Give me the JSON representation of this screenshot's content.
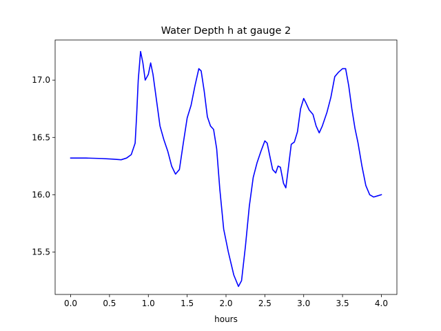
{
  "chart_data": {
    "type": "line",
    "title": "Water Depth h at gauge 2",
    "xlabel": "hours",
    "ylabel": "",
    "xlim": [
      -0.2,
      4.2
    ],
    "ylim": [
      15.13,
      17.35
    ],
    "xticks": [
      0.0,
      0.5,
      1.0,
      1.5,
      2.0,
      2.5,
      3.0,
      3.5,
      4.0
    ],
    "xtick_labels": [
      "0.0",
      "0.5",
      "1.0",
      "1.5",
      "2.0",
      "2.5",
      "3.0",
      "3.5",
      "4.0"
    ],
    "yticks": [
      15.5,
      16.0,
      16.5,
      17.0
    ],
    "ytick_labels": [
      "15.5",
      "16.0",
      "16.5",
      "17.0"
    ],
    "grid": false,
    "series": [
      {
        "color": "#0000ff",
        "x": [
          0.0,
          0.2,
          0.4,
          0.55,
          0.65,
          0.72,
          0.78,
          0.83,
          0.85,
          0.87,
          0.9,
          0.93,
          0.96,
          1.0,
          1.03,
          1.06,
          1.1,
          1.15,
          1.2,
          1.25,
          1.3,
          1.35,
          1.4,
          1.45,
          1.5,
          1.55,
          1.6,
          1.65,
          1.68,
          1.72,
          1.76,
          1.8,
          1.84,
          1.88,
          1.92,
          1.97,
          2.03,
          2.1,
          2.16,
          2.2,
          2.25,
          2.3,
          2.35,
          2.4,
          2.45,
          2.5,
          2.53,
          2.56,
          2.6,
          2.64,
          2.67,
          2.7,
          2.74,
          2.77,
          2.8,
          2.84,
          2.88,
          2.92,
          2.96,
          3.0,
          3.03,
          3.07,
          3.12,
          3.16,
          3.2,
          3.24,
          3.3,
          3.35,
          3.4,
          3.45,
          3.5,
          3.54,
          3.58,
          3.62,
          3.66,
          3.7,
          3.75,
          3.8,
          3.85,
          3.9,
          3.95,
          4.0
        ],
        "y": [
          16.32,
          16.32,
          16.316,
          16.31,
          16.305,
          16.32,
          16.35,
          16.45,
          16.7,
          17.0,
          17.25,
          17.15,
          17.0,
          17.05,
          17.15,
          17.05,
          16.85,
          16.6,
          16.48,
          16.38,
          16.25,
          16.18,
          16.22,
          16.45,
          16.67,
          16.78,
          16.95,
          17.1,
          17.08,
          16.9,
          16.68,
          16.6,
          16.57,
          16.4,
          16.05,
          15.7,
          15.5,
          15.3,
          15.2,
          15.25,
          15.55,
          15.9,
          16.15,
          16.28,
          16.38,
          16.47,
          16.45,
          16.35,
          16.22,
          16.19,
          16.25,
          16.24,
          16.1,
          16.06,
          16.22,
          16.44,
          16.46,
          16.55,
          16.75,
          16.84,
          16.8,
          16.74,
          16.7,
          16.6,
          16.54,
          16.6,
          16.72,
          16.85,
          17.03,
          17.07,
          17.1,
          17.1,
          16.95,
          16.75,
          16.58,
          16.45,
          16.25,
          16.08,
          16.0,
          15.98,
          15.99,
          16.0
        ]
      }
    ]
  }
}
